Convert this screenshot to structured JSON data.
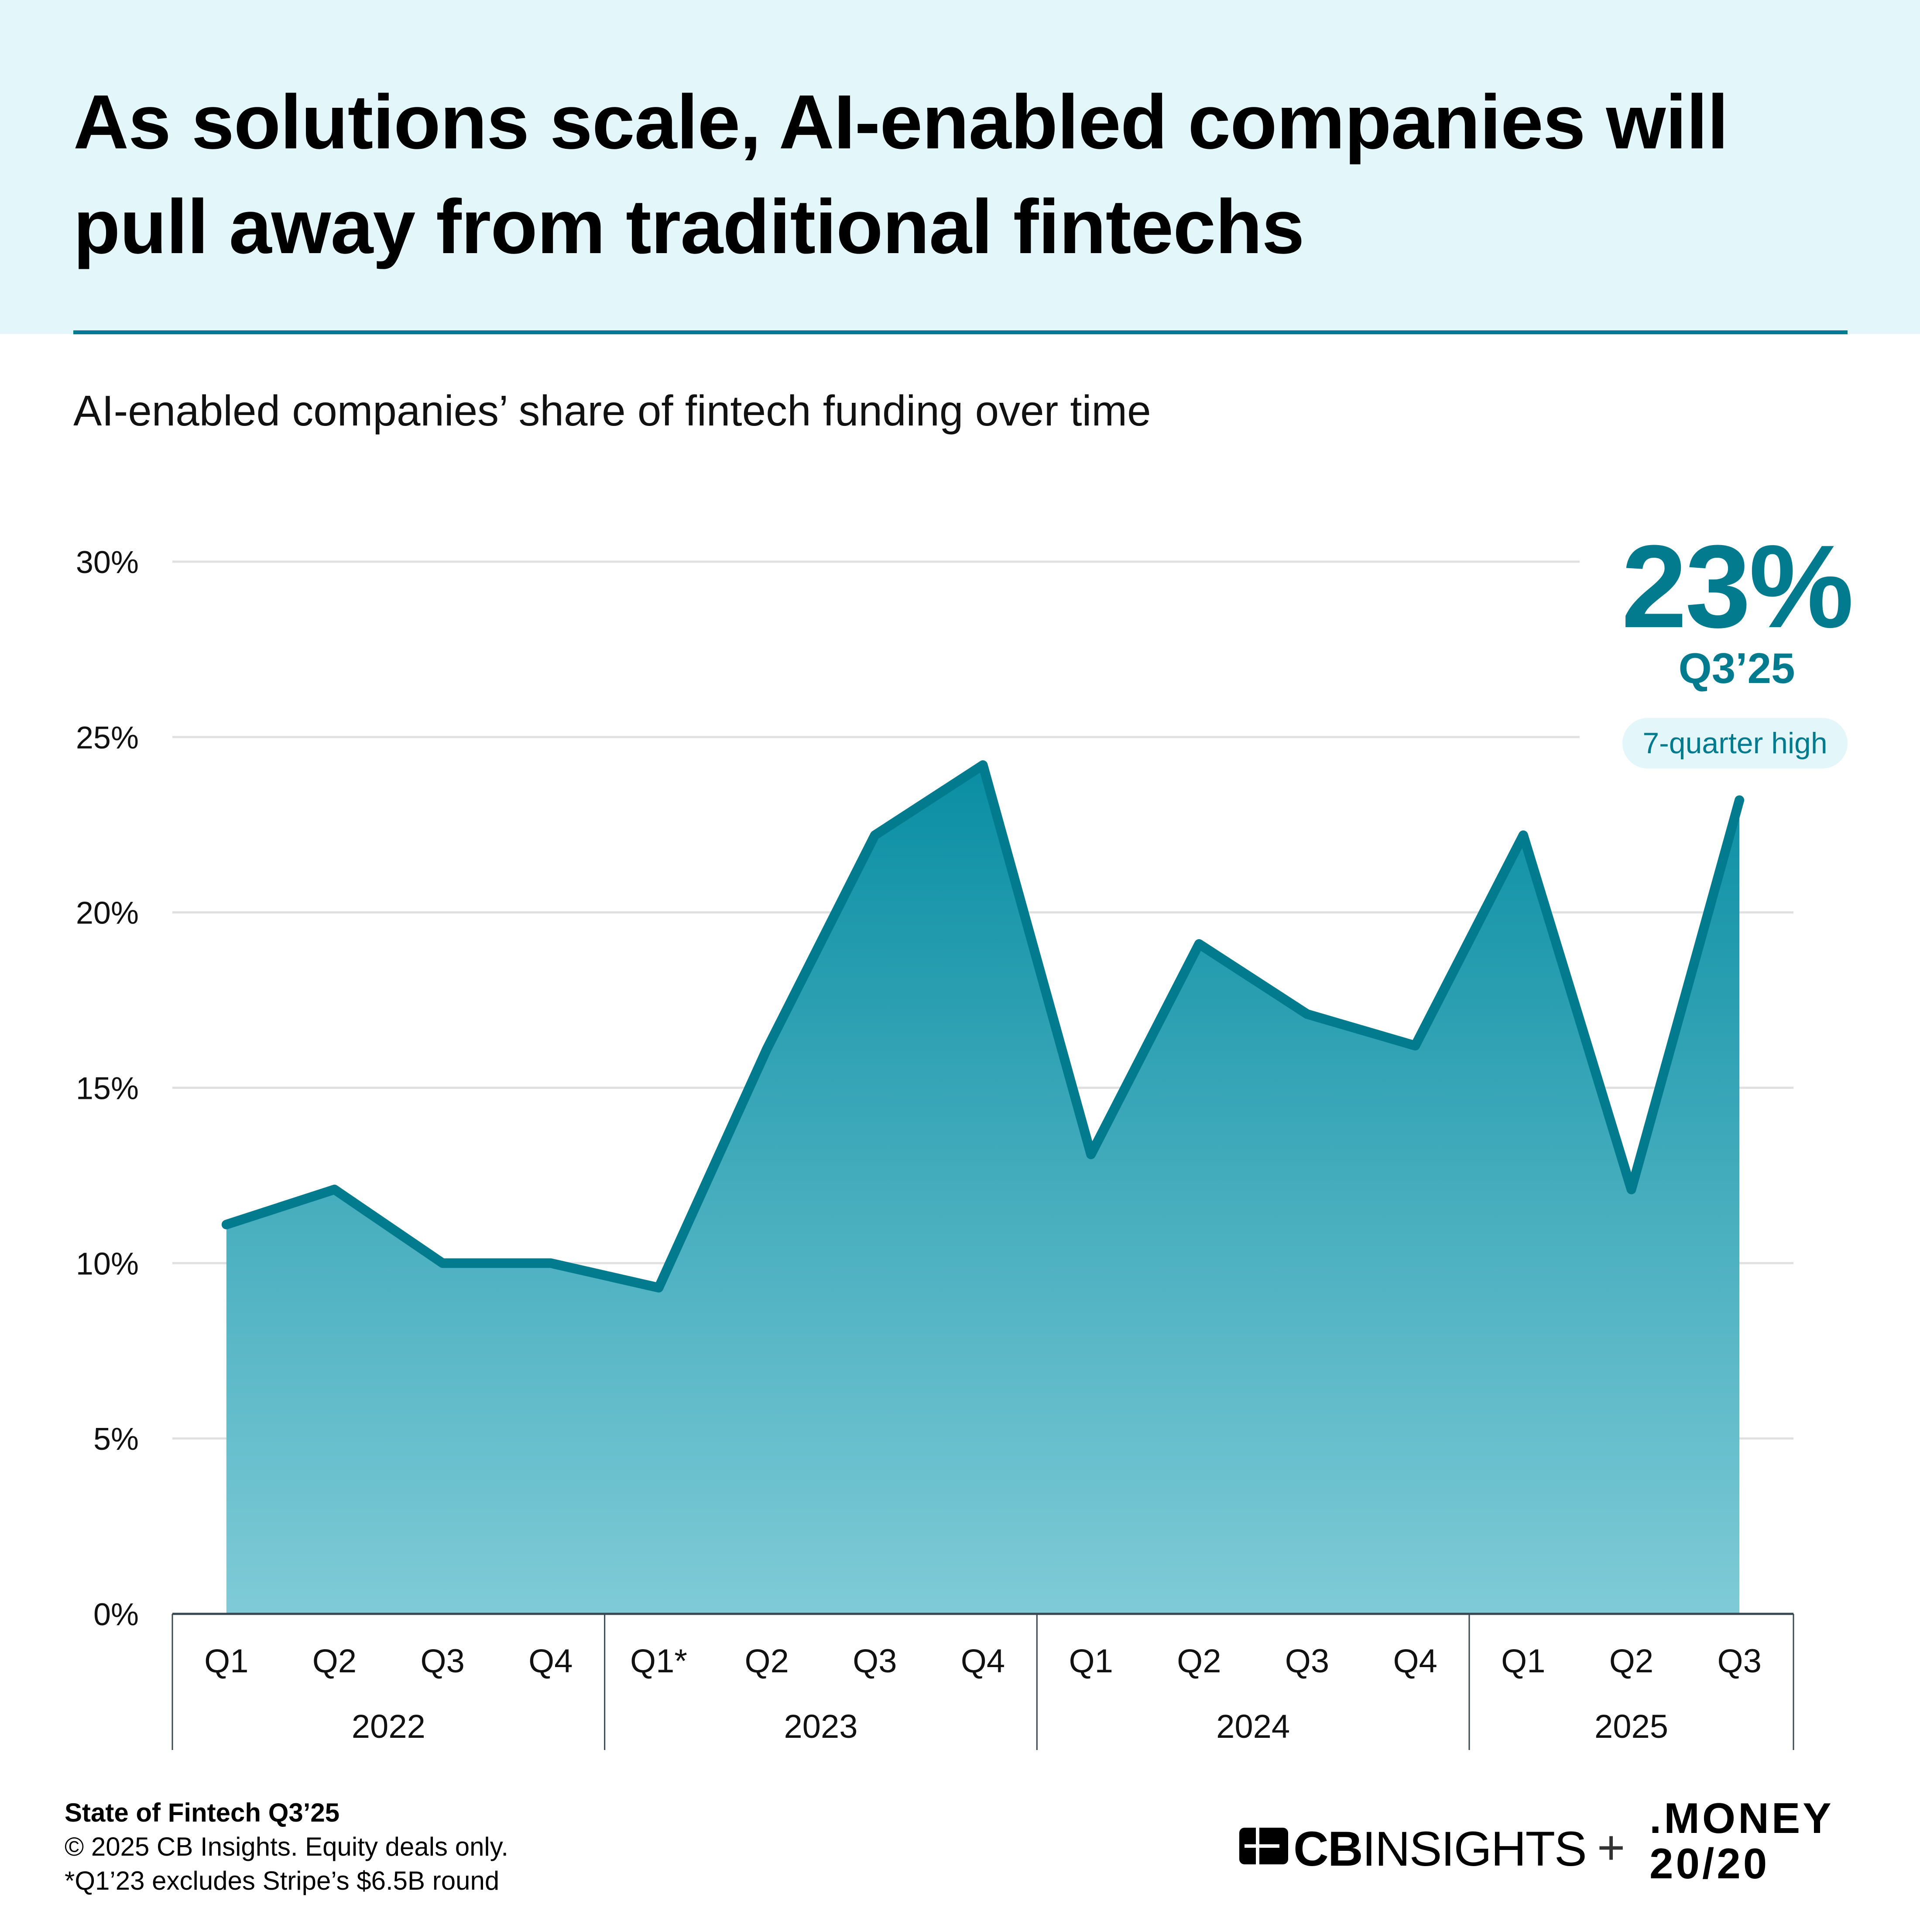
{
  "header": {
    "title": "As solutions scale, AI-enabled companies will pull away from traditional fintechs"
  },
  "subtitle": "AI-enabled companies’ share of fintech funding over time",
  "callout": {
    "value": "23%",
    "period": "Q3’25",
    "badge": "7-quarter high"
  },
  "footer": {
    "report": "State of Fintech Q3’25",
    "copyright": "© 2025 CB Insights. Equity deals only.",
    "note": "*Q1’23 excludes Stripe’s $6.5B round"
  },
  "logos": {
    "cb_bold": "CB",
    "cb_light": "INSIGHTS",
    "plus": "+",
    "money_line1": ".MONEY",
    "money_line2": "20/20"
  },
  "colors": {
    "accent": "#027b8e",
    "header_bg": "#e3f6fa",
    "fill_top": "#0a8ea3",
    "fill_bottom": "#7fcbd7",
    "grid": "#e0e0e0",
    "axis": "#37474f"
  },
  "chart_data": {
    "type": "area",
    "title": "AI-enabled companies’ share of fintech funding over time",
    "xlabel": "",
    "ylabel": "",
    "ylim": [
      0,
      30
    ],
    "yticks": [
      0,
      5,
      10,
      15,
      20,
      25,
      30
    ],
    "ytick_labels": [
      "0%",
      "5%",
      "10%",
      "15%",
      "20%",
      "25%",
      "30%"
    ],
    "grid": true,
    "legend": "none",
    "categories": [
      "Q1",
      "Q2",
      "Q3",
      "Q4",
      "Q1*",
      "Q2",
      "Q3",
      "Q4",
      "Q1",
      "Q2",
      "Q3",
      "Q4",
      "Q1",
      "Q2",
      "Q3"
    ],
    "groups": [
      {
        "label": "2022",
        "count": 4
      },
      {
        "label": "2023",
        "count": 4
      },
      {
        "label": "2024",
        "count": 4
      },
      {
        "label": "2025",
        "count": 3
      }
    ],
    "series": [
      {
        "name": "AI-enabled share of fintech funding (%)",
        "values": [
          11.1,
          12.1,
          10.0,
          10.0,
          9.3,
          16.1,
          22.2,
          24.2,
          13.1,
          19.1,
          17.1,
          16.2,
          22.2,
          12.1,
          23.2
        ]
      }
    ],
    "annotations": [
      {
        "text": "23%",
        "target": "Q3 2025"
      },
      {
        "text": "Q3’25",
        "target": "Q3 2025"
      },
      {
        "text": "7-quarter high",
        "target": "Q3 2025"
      }
    ]
  }
}
